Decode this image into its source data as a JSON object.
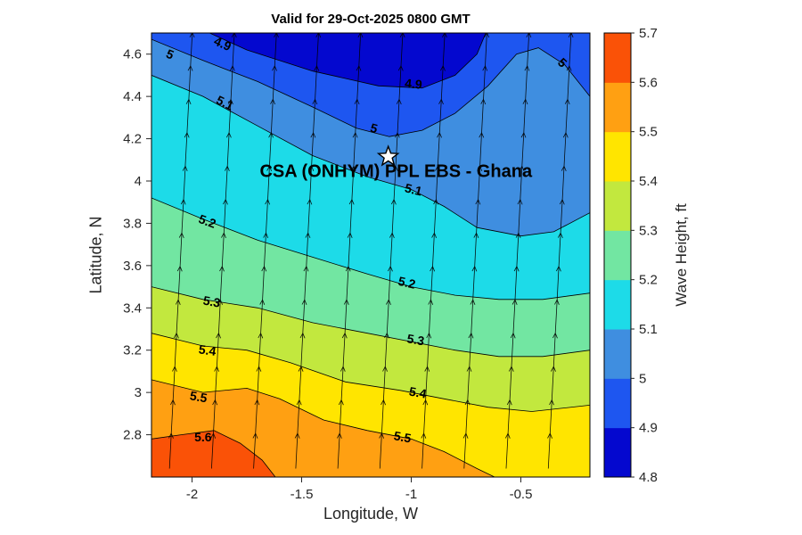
{
  "title": "Valid for 29-Oct-2025 0800 GMT",
  "axes": {
    "xlabel": "Longitude, W",
    "ylabel": "Latitude, N",
    "xlim": [
      -2.185,
      -0.185
    ],
    "ylim": [
      2.6,
      4.7
    ],
    "xticks": [
      -2,
      -1.5,
      -1,
      -0.5
    ],
    "xtick_labels": [
      "-2",
      "-1.5",
      "-1",
      "-0.5"
    ],
    "yticks": [
      2.8,
      3,
      3.2,
      3.4,
      3.6,
      3.8,
      4,
      4.2,
      4.4,
      4.6
    ],
    "ytick_labels": [
      "2.8",
      "3",
      "3.2",
      "3.4",
      "3.6",
      "3.8",
      "4",
      "4.2",
      "4.4",
      "4.6"
    ]
  },
  "colorbar": {
    "label": "Wave Height, ft",
    "min": 4.8,
    "max": 5.7,
    "tick_values": [
      4.8,
      4.9,
      5,
      5.1,
      5.2,
      5.3,
      5.4,
      5.5,
      5.6,
      5.7
    ],
    "tick_labels": [
      "4.8",
      "4.9",
      "5",
      "5.1",
      "5.2",
      "5.3",
      "5.4",
      "5.5",
      "5.6",
      "5.7"
    ],
    "band_colors": [
      "#0408cf",
      "#1e56f0",
      "#3f8ee0",
      "#1ddbe8",
      "#72e6a2",
      "#c2e83e",
      "#ffe500",
      "#ffa012",
      "#fa5207"
    ]
  },
  "annotation": {
    "label": "CSA (ONHYM) PPL EBS  - Ghana",
    "lon": -1.07,
    "lat": 4.02,
    "star_lon": -1.105,
    "star_lat": 4.115
  },
  "chart_data": {
    "type": "heatmap",
    "subtype": "filled-contour-with-direction-arrows",
    "title": "Valid for 29-Oct-2025 0800 GMT",
    "xlabel": "Longitude, W",
    "ylabel": "Latitude, N",
    "value_label": "Wave Height, ft",
    "xlim": [
      -2.185,
      -0.185
    ],
    "ylim": [
      2.6,
      4.7
    ],
    "levels": [
      4.8,
      4.9,
      5,
      5.1,
      5.2,
      5.3,
      5.4,
      5.5,
      5.6,
      5.7
    ],
    "value_trend": "wave height increases from ~4.8 ft in the north to ~5.7 ft in the south",
    "base_band": [
      4.9,
      5.0
    ],
    "contours": [
      {
        "level": 4.9,
        "fill_side": "above",
        "band": [
          4.8,
          4.9
        ],
        "color_index": 0,
        "points": [
          [
            -1.92,
            4.7
          ],
          [
            -1.75,
            4.62
          ],
          [
            -1.45,
            4.52
          ],
          [
            -1.15,
            4.45
          ],
          [
            -0.95,
            4.44
          ],
          [
            -0.8,
            4.5
          ],
          [
            -0.7,
            4.6
          ],
          [
            -0.66,
            4.7
          ]
        ]
      },
      {
        "level": 5.0,
        "fill_side": "below",
        "band": [
          5.0,
          5.1
        ],
        "color_index": 2,
        "points": [
          [
            -2.185,
            4.67
          ],
          [
            -1.95,
            4.57
          ],
          [
            -1.7,
            4.47
          ],
          [
            -1.45,
            4.35
          ],
          [
            -1.25,
            4.25
          ],
          [
            -1.1,
            4.21
          ],
          [
            -0.95,
            4.24
          ],
          [
            -0.8,
            4.32
          ],
          [
            -0.65,
            4.45
          ],
          [
            -0.52,
            4.6
          ],
          [
            -0.42,
            4.63
          ],
          [
            -0.3,
            4.55
          ],
          [
            -0.185,
            4.4
          ]
        ]
      },
      {
        "level": 5.1,
        "fill_side": "below",
        "band": [
          5.1,
          5.2
        ],
        "color_index": 3,
        "points": [
          [
            -2.185,
            4.5
          ],
          [
            -1.95,
            4.4
          ],
          [
            -1.7,
            4.26
          ],
          [
            -1.45,
            4.12
          ],
          [
            -1.2,
            4.02
          ],
          [
            -1.0,
            3.96
          ],
          [
            -0.85,
            3.88
          ],
          [
            -0.7,
            3.78
          ],
          [
            -0.5,
            3.74
          ],
          [
            -0.35,
            3.76
          ],
          [
            -0.185,
            3.85
          ]
        ]
      },
      {
        "level": 5.2,
        "fill_side": "below",
        "band": [
          5.2,
          5.3
        ],
        "color_index": 4,
        "points": [
          [
            -2.185,
            3.92
          ],
          [
            -1.95,
            3.82
          ],
          [
            -1.7,
            3.72
          ],
          [
            -1.45,
            3.64
          ],
          [
            -1.2,
            3.56
          ],
          [
            -1.0,
            3.5
          ],
          [
            -0.8,
            3.46
          ],
          [
            -0.6,
            3.44
          ],
          [
            -0.4,
            3.44
          ],
          [
            -0.185,
            3.47
          ]
        ]
      },
      {
        "level": 5.3,
        "fill_side": "below",
        "band": [
          5.3,
          5.4
        ],
        "color_index": 5,
        "points": [
          [
            -2.185,
            3.5
          ],
          [
            -1.95,
            3.44
          ],
          [
            -1.7,
            3.4
          ],
          [
            -1.45,
            3.33
          ],
          [
            -1.2,
            3.28
          ],
          [
            -1.0,
            3.24
          ],
          [
            -0.8,
            3.2
          ],
          [
            -0.6,
            3.17
          ],
          [
            -0.4,
            3.17
          ],
          [
            -0.185,
            3.2
          ]
        ]
      },
      {
        "level": 5.4,
        "fill_side": "below",
        "band": [
          5.4,
          5.5
        ],
        "color_index": 6,
        "points": [
          [
            -2.185,
            3.28
          ],
          [
            -1.95,
            3.22
          ],
          [
            -1.75,
            3.2
          ],
          [
            -1.55,
            3.14
          ],
          [
            -1.3,
            3.05
          ],
          [
            -1.05,
            3.01
          ],
          [
            -0.85,
            2.97
          ],
          [
            -0.65,
            2.93
          ],
          [
            -0.45,
            2.91
          ],
          [
            -0.185,
            2.94
          ]
        ]
      },
      {
        "level": 5.5,
        "fill_side": "below",
        "band": [
          5.5,
          5.6
        ],
        "color_index": 7,
        "points": [
          [
            -2.185,
            3.06
          ],
          [
            -1.95,
            3.0
          ],
          [
            -1.75,
            3.02
          ],
          [
            -1.6,
            2.97
          ],
          [
            -1.4,
            2.87
          ],
          [
            -1.2,
            2.82
          ],
          [
            -1.0,
            2.78
          ],
          [
            -0.85,
            2.72
          ],
          [
            -0.7,
            2.64
          ],
          [
            -0.62,
            2.6
          ]
        ]
      },
      {
        "level": 5.6,
        "fill_side": "below",
        "band": [
          5.6,
          5.7
        ],
        "color_index": 8,
        "points": [
          [
            -2.185,
            2.78
          ],
          [
            -2.05,
            2.8
          ],
          [
            -1.9,
            2.82
          ],
          [
            -1.78,
            2.76
          ],
          [
            -1.68,
            2.68
          ],
          [
            -1.62,
            2.6
          ]
        ]
      }
    ],
    "contour_labels": [
      {
        "text": "5",
        "lon": -2.1,
        "lat": 4.6,
        "rot": 22
      },
      {
        "text": "4.9",
        "lon": -1.86,
        "lat": 4.65,
        "rot": 24
      },
      {
        "text": "4.9",
        "lon": -0.99,
        "lat": 4.46,
        "rot": 5
      },
      {
        "text": "5",
        "lon": -1.17,
        "lat": 4.25,
        "rot": 15
      },
      {
        "text": "5",
        "lon": -0.31,
        "lat": 4.56,
        "rot": 43
      },
      {
        "text": "5.1",
        "lon": -1.85,
        "lat": 4.37,
        "rot": 26
      },
      {
        "text": "5.1",
        "lon": -0.99,
        "lat": 3.96,
        "rot": 14
      },
      {
        "text": "5.2",
        "lon": -1.93,
        "lat": 3.81,
        "rot": 20
      },
      {
        "text": "5.2",
        "lon": -1.02,
        "lat": 3.52,
        "rot": 13
      },
      {
        "text": "5.3",
        "lon": -1.91,
        "lat": 3.43,
        "rot": 10
      },
      {
        "text": "5.3",
        "lon": -0.98,
        "lat": 3.25,
        "rot": 10
      },
      {
        "text": "5.4",
        "lon": -1.93,
        "lat": 3.2,
        "rot": 8
      },
      {
        "text": "5.4",
        "lon": -0.97,
        "lat": 3.0,
        "rot": 10
      },
      {
        "text": "5.5",
        "lon": -1.97,
        "lat": 2.98,
        "rot": 10
      },
      {
        "text": "5.5",
        "lon": -1.04,
        "lat": 2.79,
        "rot": 10
      },
      {
        "text": "5.6",
        "lon": -1.95,
        "lat": 2.79,
        "rot": 0
      }
    ],
    "quiver": {
      "description": "wave direction arrows pointing approximately north with slight eastward tilt",
      "lon_start": -2.105,
      "lon_step": 0.192,
      "lon_count": 11,
      "lat_start": 2.64,
      "lat_step": 0.158,
      "lat_count": 13,
      "tilt_deg": 3
    }
  }
}
